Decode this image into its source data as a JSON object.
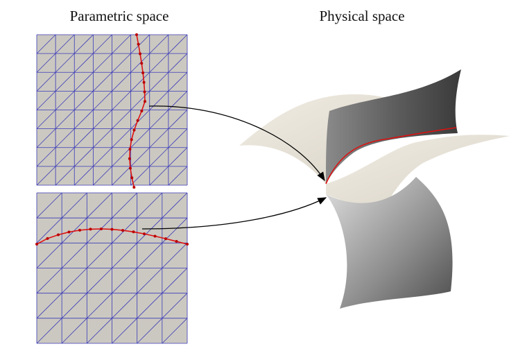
{
  "labels": {
    "parametric": "Parametric space",
    "physical": "Physical space"
  }
}
